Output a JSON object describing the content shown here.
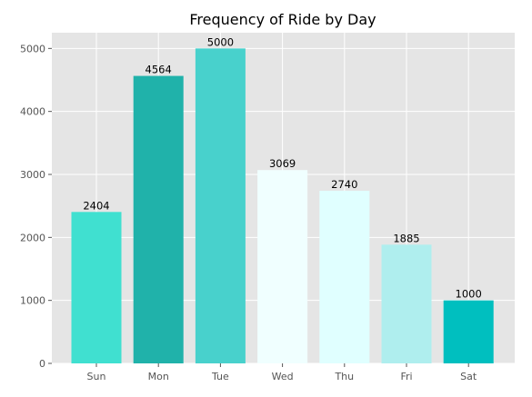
{
  "chart_data": {
    "type": "bar",
    "title": "Frequency of Ride by Day",
    "xlabel": "",
    "ylabel": "",
    "categories": [
      "Sun",
      "Mon",
      "Tue",
      "Wed",
      "Thu",
      "Fri",
      "Sat"
    ],
    "values": [
      2404,
      4564,
      5000,
      3069,
      2740,
      1885,
      1000
    ],
    "data_labels": [
      "2404",
      "4564",
      "5000",
      "3069",
      "2740",
      "1885",
      "1000"
    ],
    "bar_colors": [
      "#40e0d0",
      "#20b2aa",
      "#48d1cc",
      "#f0ffff",
      "#e0ffff",
      "#afeeee",
      "#00bfbf"
    ],
    "ylim": [
      0,
      5250
    ],
    "yticks": [
      0,
      1000,
      2000,
      3000,
      4000,
      5000
    ],
    "ytick_labels": [
      "0",
      "1000",
      "2000",
      "3000",
      "4000",
      "5000"
    ],
    "grid": true,
    "legend": "none"
  },
  "colors": {
    "plot_background": "#e5e5e5",
    "grid": "#ffffff",
    "figure_background": "#ffffff"
  }
}
